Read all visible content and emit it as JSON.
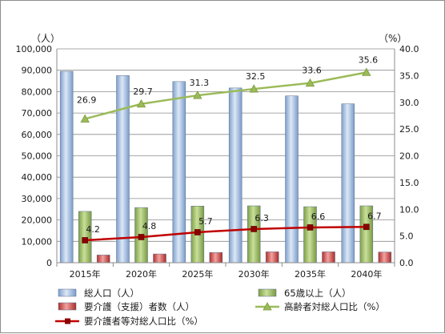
{
  "chart_data": {
    "type": "bar",
    "categories": [
      "2015年",
      "2020年",
      "2025年",
      "2030年",
      "2035年",
      "2040年"
    ],
    "left_axis": {
      "unit": "（人）",
      "ylim": [
        0,
        100000
      ],
      "ticks": [
        "0",
        "10,000",
        "20,000",
        "30,000",
        "40,000",
        "50,000",
        "60,000",
        "70,000",
        "80,000",
        "90,000",
        "100,000"
      ]
    },
    "right_axis": {
      "unit": "（%）",
      "ylim": [
        0,
        40
      ],
      "ticks": [
        "0.0",
        "5.0",
        "10.0",
        "15.0",
        "20.0",
        "25.0",
        "30.0",
        "35.0",
        "40.0"
      ]
    },
    "series": [
      {
        "name": "総人口（人）",
        "kind": "bar",
        "axis": "left",
        "color": "#95b3d7",
        "values": [
          89500,
          87500,
          84700,
          81700,
          78000,
          74300
        ]
      },
      {
        "name": "65歳以上（人）",
        "kind": "bar",
        "axis": "left",
        "color": "#9bbb59",
        "values": [
          24000,
          25800,
          26500,
          26600,
          26200,
          26600
        ]
      },
      {
        "name": "要介護（支援）者数（人）",
        "kind": "bar",
        "axis": "left",
        "color": "#c0504d",
        "values": [
          3600,
          4100,
          4800,
          5100,
          5100,
          5000
        ]
      },
      {
        "name": "高齢者対総人口比（%）",
        "kind": "line",
        "axis": "right",
        "color": "#9bbb59",
        "marker": "triangle",
        "values": [
          26.9,
          29.7,
          31.3,
          32.5,
          33.6,
          35.6
        ],
        "labels": [
          "26.9",
          "29.7",
          "31.3",
          "32.5",
          "33.6",
          "35.6"
        ]
      },
      {
        "name": "要介護者等対総人口比（%）",
        "kind": "line",
        "axis": "right",
        "color": "#c00000",
        "marker": "square",
        "values": [
          4.2,
          4.8,
          5.7,
          6.3,
          6.6,
          6.7
        ],
        "labels": [
          "4.2",
          "4.8",
          "5.7",
          "6.3",
          "6.6",
          "6.7"
        ]
      }
    ],
    "grid": true,
    "legend": "bottom"
  }
}
